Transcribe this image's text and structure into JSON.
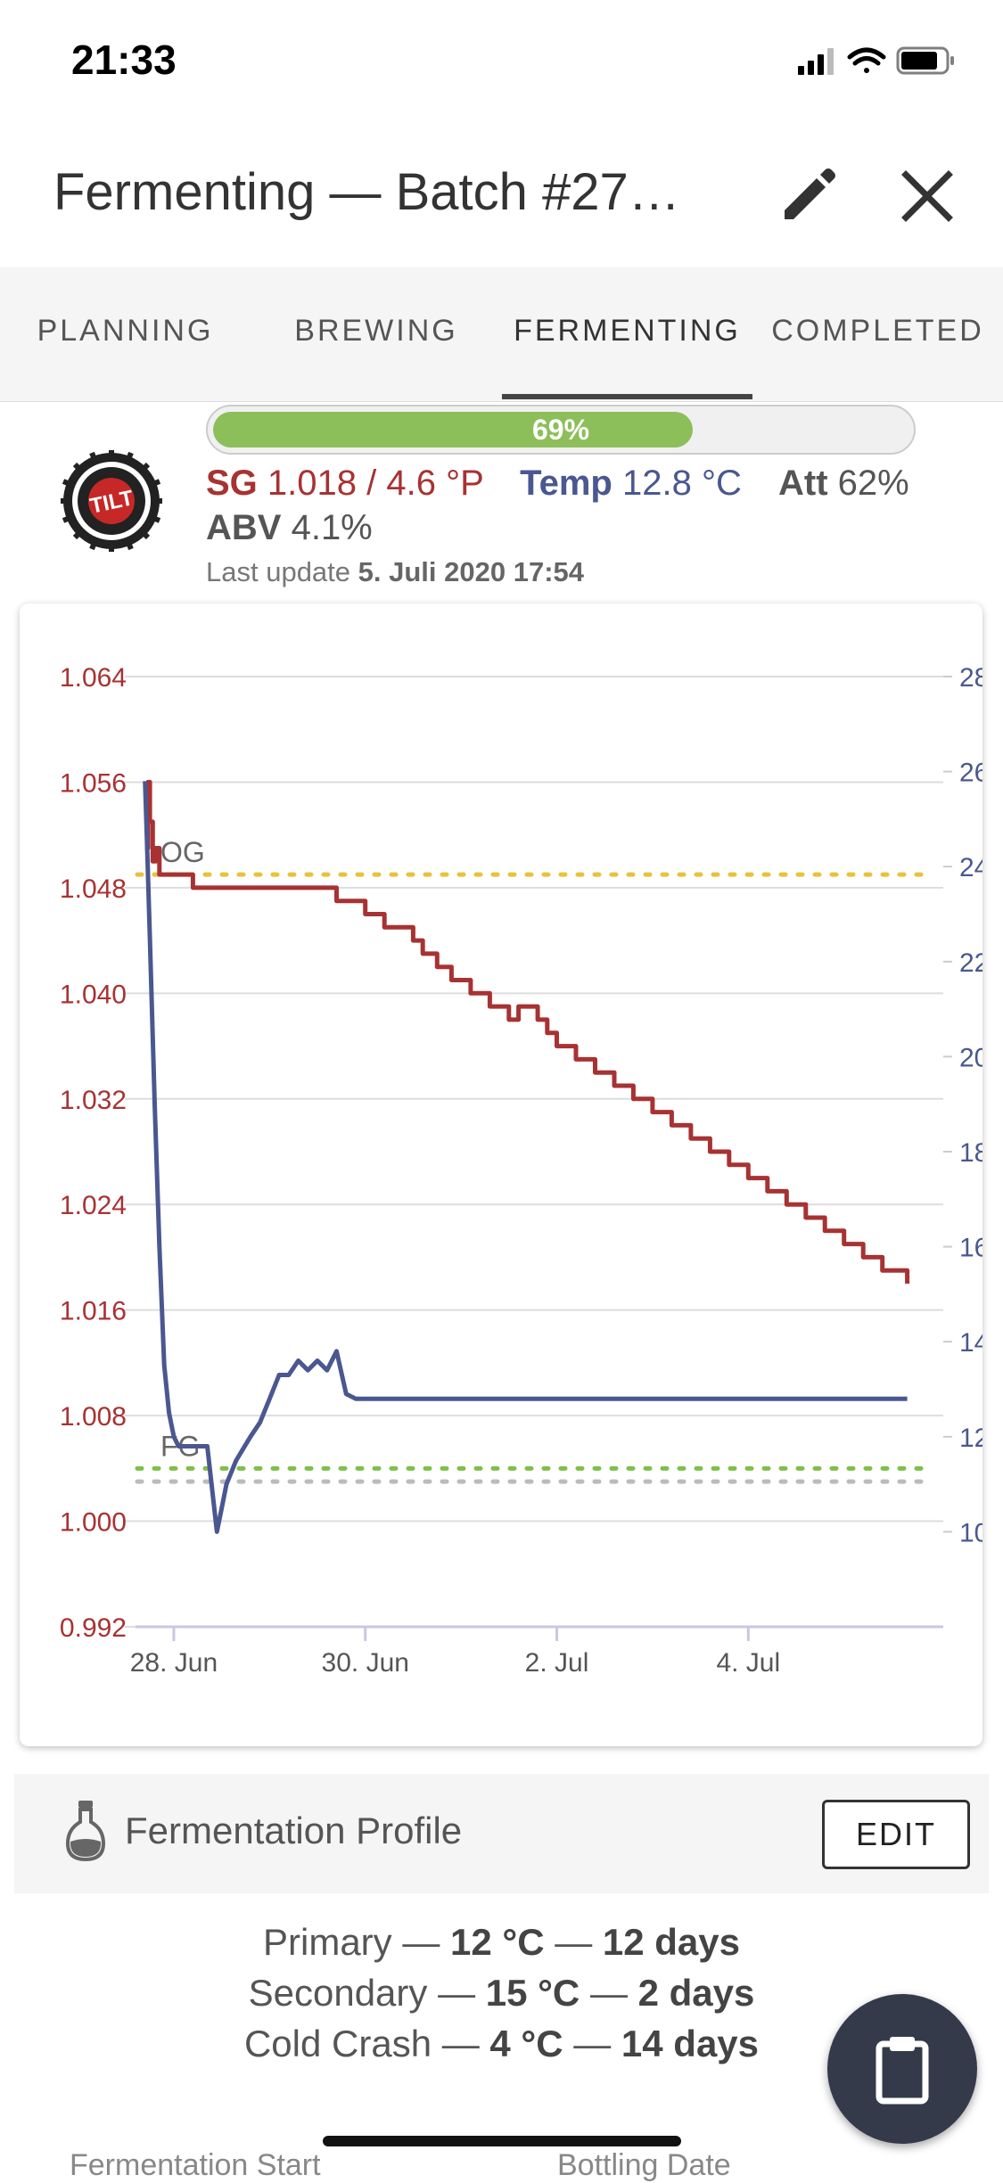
{
  "status": {
    "time": "21:33"
  },
  "header": {
    "title": "Fermenting — Batch #27…"
  },
  "tabs": [
    {
      "label": "PLANNING"
    },
    {
      "label": "BREWING"
    },
    {
      "label": "FERMENTING"
    },
    {
      "label": "COMPLETED"
    }
  ],
  "active_tab": "FERMENTING",
  "progress": {
    "label": "69%",
    "value": 0.69
  },
  "device": {
    "logo": "TILT"
  },
  "readings": {
    "sg_label": "SG",
    "sg_value": "1.018 / 4.6 °P",
    "temp_label": "Temp",
    "temp_value": "12.8 °C",
    "att_label": "Att",
    "att_value": "62%",
    "abv_label": "ABV",
    "abv_value": "4.1%",
    "last_update_prefix": "Last update",
    "last_update_value": "5. Juli 2020 17:54"
  },
  "colors": {
    "gravity": "#a83232",
    "temperature": "#4a5790",
    "og_line": "#e8c23a",
    "fg_line": "#7fbf4a",
    "target_line": "#bbbbbb",
    "progress": "#8cbf5a"
  },
  "chart_data": {
    "type": "line",
    "x_ticks": [
      "28. Jun",
      "30. Jun",
      "2. Jul",
      "4. Jul"
    ],
    "x_tick_days": [
      0,
      2,
      4,
      6
    ],
    "xlim": [
      -0.4,
      7.85
    ],
    "left_axis": {
      "ticks": [
        "1.064",
        "1.056",
        "1.048",
        "1.040",
        "1.032",
        "1.024",
        "1.016",
        "1.008",
        "1.000",
        "0.992"
      ],
      "ylim": [
        0.992,
        1.064
      ]
    },
    "right_axis": {
      "ticks": [
        "28",
        "26",
        "24",
        "22",
        "20",
        "18",
        "16",
        "14",
        "12",
        "10"
      ],
      "ylim": [
        8,
        28
      ]
    },
    "annotations": [
      {
        "label": "OG",
        "value": 1.049,
        "axis": "left",
        "style": "dotted-yellow"
      },
      {
        "label": "FG",
        "value": 1.004,
        "axis": "left",
        "style": "dotted-green"
      },
      {
        "label": "",
        "value": 1.003,
        "axis": "left",
        "style": "dotted-grey"
      }
    ],
    "series": [
      {
        "axis": "left",
        "x": [
          -0.3,
          -0.27,
          -0.25,
          -0.22,
          -0.19,
          -0.15,
          -0.1,
          0.1,
          0.2,
          0.5,
          1.0,
          1.4,
          1.7,
          1.75,
          2.0,
          2.2,
          2.5,
          2.6,
          2.75,
          2.9,
          3.1,
          3.3,
          3.5,
          3.6,
          3.8,
          3.9,
          4.0,
          4.2,
          4.4,
          4.6,
          4.8,
          5.0,
          5.2,
          5.4,
          5.6,
          5.8,
          6.0,
          6.2,
          6.4,
          6.6,
          6.8,
          7.0,
          7.2,
          7.4,
          7.6,
          7.66
        ],
        "values": [
          1.051,
          1.056,
          1.053,
          1.05,
          1.051,
          1.049,
          1.049,
          1.049,
          1.048,
          1.048,
          1.048,
          1.048,
          1.047,
          1.047,
          1.046,
          1.045,
          1.044,
          1.043,
          1.042,
          1.041,
          1.04,
          1.039,
          1.038,
          1.039,
          1.038,
          1.037,
          1.036,
          1.035,
          1.034,
          1.033,
          1.032,
          1.031,
          1.03,
          1.029,
          1.028,
          1.027,
          1.026,
          1.025,
          1.024,
          1.023,
          1.022,
          1.021,
          1.02,
          1.019,
          1.019,
          1.018
        ]
      },
      {
        "axis": "right",
        "x": [
          -0.3,
          -0.28,
          -0.25,
          -0.2,
          -0.15,
          -0.1,
          -0.05,
          0.0,
          0.05,
          0.1,
          0.2,
          0.35,
          0.45,
          0.5,
          0.55,
          0.65,
          0.8,
          0.9,
          1.0,
          1.1,
          1.2,
          1.3,
          1.4,
          1.5,
          1.6,
          1.7,
          1.8,
          1.9,
          2.1,
          2.5,
          3.0,
          3.5,
          4.0,
          4.5,
          5.0,
          5.5,
          6.0,
          6.5,
          7.0,
          7.5,
          7.66
        ],
        "values": [
          25.8,
          24.5,
          22.5,
          19.0,
          16.0,
          13.5,
          12.5,
          12.0,
          11.8,
          11.8,
          11.8,
          11.8,
          10.0,
          10.5,
          11.0,
          11.5,
          12.0,
          12.3,
          12.8,
          13.3,
          13.3,
          13.6,
          13.4,
          13.6,
          13.4,
          13.8,
          12.9,
          12.8,
          12.8,
          12.8,
          12.8,
          12.8,
          12.8,
          12.8,
          12.8,
          12.8,
          12.8,
          12.8,
          12.8,
          12.8,
          12.8
        ]
      }
    ]
  },
  "profile": {
    "title": "Fermentation Profile",
    "edit_label": "EDIT",
    "steps": [
      {
        "name": "Primary",
        "temp": "12 °C",
        "duration": "12 days"
      },
      {
        "name": "Secondary",
        "temp": "15 °C",
        "duration": "2 days"
      },
      {
        "name": "Cold Crash",
        "temp": "4 °C",
        "duration": "14 days"
      }
    ],
    "separator": "—"
  },
  "footer": {
    "start_label": "Fermentation Start",
    "bottling_label": "Bottling Date"
  }
}
